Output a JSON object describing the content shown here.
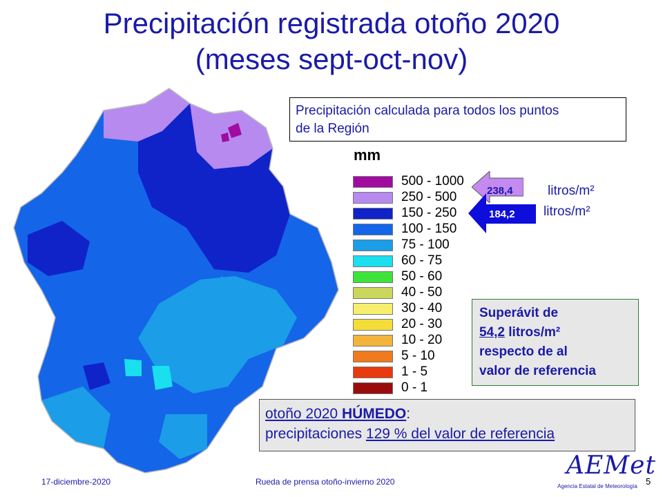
{
  "title": {
    "line1": "Precipitación registrada otoño 2020",
    "line2": "(meses sept-oct-nov)"
  },
  "info_box": {
    "line1": "Precipitación calculada para todos los puntos",
    "line2": "de la Región"
  },
  "legend": {
    "title": "mm",
    "classes": [
      {
        "label": "500 - 1000",
        "color": "#a10ba0"
      },
      {
        "label": "250 - 500",
        "color": "#b78af0"
      },
      {
        "label": "150 - 250",
        "color": "#0f23c8"
      },
      {
        "label": "100 - 150",
        "color": "#1565e8"
      },
      {
        "label": "75 - 100",
        "color": "#1b9de8"
      },
      {
        "label": "60 - 75",
        "color": "#19dfee"
      },
      {
        "label": "50 - 60",
        "color": "#3de33a"
      },
      {
        "label": "40 - 50",
        "color": "#cbd75a"
      },
      {
        "label": "30 - 40",
        "color": "#f6ef6e"
      },
      {
        "label": "20 - 30",
        "color": "#f4dd38"
      },
      {
        "label": "10 - 20",
        "color": "#f2b43a"
      },
      {
        "label": "5 - 10",
        "color": "#f07a1c"
      },
      {
        "label": "1 - 5",
        "color": "#e83a0e"
      },
      {
        "label": "0 - 1",
        "color": "#9a0c0c"
      }
    ]
  },
  "markers": {
    "observed": {
      "value": "238,4",
      "unit": "litros/m²",
      "color": "#c48af0"
    },
    "reference": {
      "value": "184,2",
      "unit": "litros/m²",
      "color": "#0d0ddc"
    }
  },
  "surplus_box": {
    "line1": "Superávit de",
    "amount": "54,2",
    "line2_rest": " litros/m²",
    "line3": "respecto de al",
    "line4": "valor de referencia"
  },
  "result_box": {
    "prefix": "otoño 2020 ",
    "strong": "HÚMEDO",
    "suffix": ":",
    "line2_lead": "precipitaciones ",
    "line2_u": "129 % del valor de referencia"
  },
  "footer": {
    "date": "17-diciembre-2020",
    "event": "Rueda de prensa otoño-invierno  2020",
    "page": "5"
  },
  "logo": {
    "name": "AEMet",
    "subtitle": "Agencia Estatal de Meteorología"
  }
}
